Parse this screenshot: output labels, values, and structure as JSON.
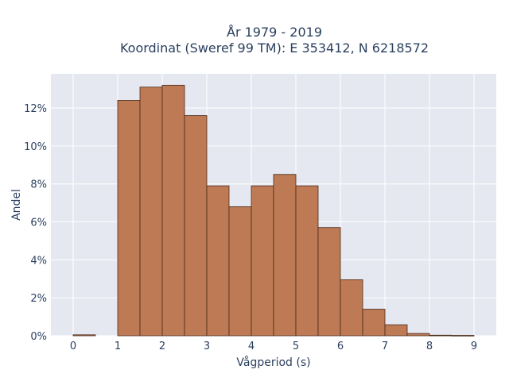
{
  "chart_data": {
    "type": "bar",
    "title_lines": [
      "År 1979 - 2019",
      "Koordinat (Sweref 99 TM): E 353412, N 6218572"
    ],
    "xlabel": "Vågperiod (s)",
    "ylabel": "Andel",
    "bin_width": 0.5,
    "bins": [
      {
        "x0": 0.0,
        "value": 0.05
      },
      {
        "x0": 0.5,
        "value": 0.0
      },
      {
        "x0": 1.0,
        "value": 12.4
      },
      {
        "x0": 1.5,
        "value": 13.1
      },
      {
        "x0": 2.0,
        "value": 13.2
      },
      {
        "x0": 2.5,
        "value": 11.6
      },
      {
        "x0": 3.0,
        "value": 7.9
      },
      {
        "x0": 3.5,
        "value": 6.8
      },
      {
        "x0": 4.0,
        "value": 7.9
      },
      {
        "x0": 4.5,
        "value": 8.5
      },
      {
        "x0": 5.0,
        "value": 7.9
      },
      {
        "x0": 5.5,
        "value": 5.7
      },
      {
        "x0": 6.0,
        "value": 2.95
      },
      {
        "x0": 6.5,
        "value": 1.4
      },
      {
        "x0": 7.0,
        "value": 0.58
      },
      {
        "x0": 7.5,
        "value": 0.12
      },
      {
        "x0": 8.0,
        "value": 0.03
      },
      {
        "x0": 8.5,
        "value": 0.02
      }
    ],
    "x_ticks": [
      "0",
      "1",
      "2",
      "3",
      "4",
      "5",
      "6",
      "7",
      "8",
      "9"
    ],
    "y_ticks": [
      "0%",
      "2%",
      "4%",
      "6%",
      "8%",
      "10%",
      "12%"
    ],
    "xlim": [
      -0.5,
      9.5
    ],
    "ylim": [
      0,
      13.8
    ],
    "bar_color": "#bd7a55",
    "plot_background": "#e5e8f1",
    "grid": true
  }
}
